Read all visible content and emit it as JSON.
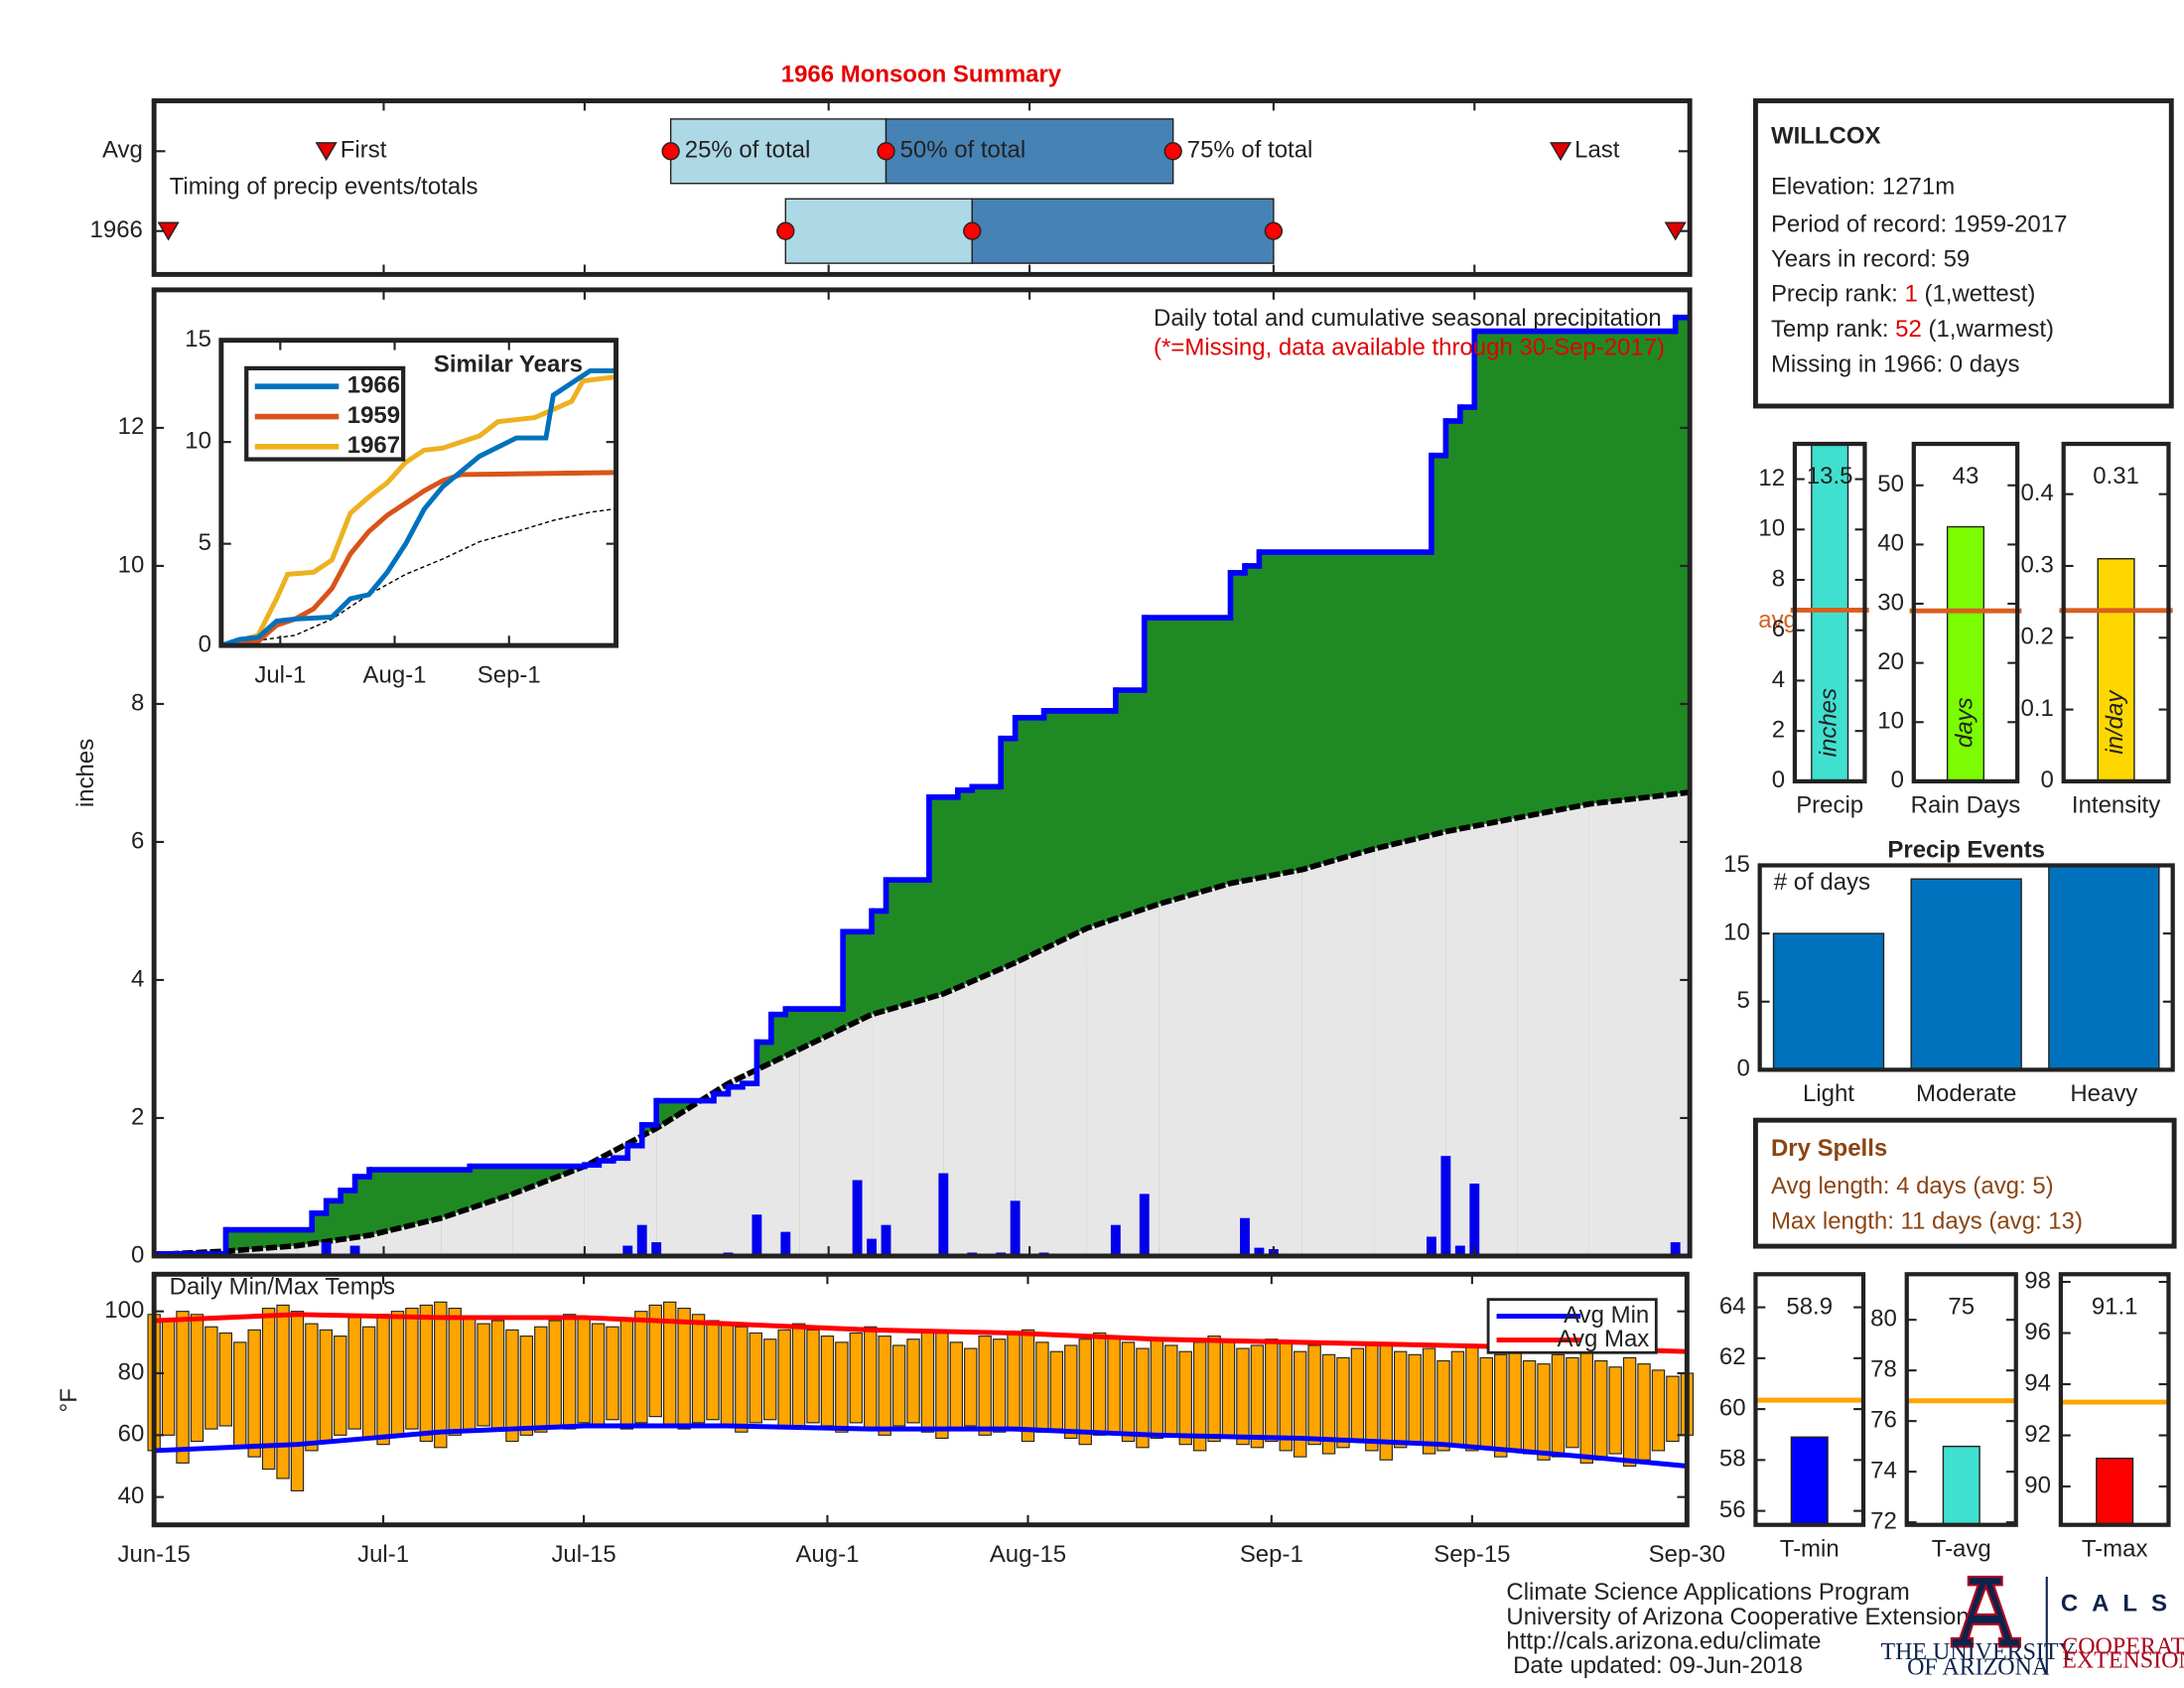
{
  "chart_data": [
    {
      "type": "timing",
      "title": "1966 Monsoon Summary",
      "note": "Timing of precip events/totals",
      "xlim": [
        0,
        107
      ],
      "xticks": [
        0,
        16,
        30,
        47,
        61,
        78,
        92,
        107
      ],
      "first_label": "First",
      "p25_label": "25% of total",
      "p50_label": "50% of total",
      "p75_label": "75% of total",
      "last_label": "Last",
      "rows": [
        {
          "label": "Avg",
          "first": 12,
          "p25": 36,
          "p50": 51,
          "p75": 71,
          "last": 98
        },
        {
          "label": "1966",
          "first": 1,
          "p25": 44,
          "p50": 57,
          "p75": 78,
          "last": 106
        }
      ]
    },
    {
      "type": "cumulative",
      "ylabel": "inches",
      "title": "Daily total and cumulative seasonal precipitation",
      "subtitle": "(*=Missing, data available through 30-Sep-2017)",
      "xlim": [
        0,
        107
      ],
      "xticks": [
        0,
        16,
        30,
        47,
        61,
        78,
        92,
        107
      ],
      "ylim": [
        0,
        14
      ],
      "yticks": [
        0,
        2,
        4,
        6,
        8,
        10,
        12
      ],
      "daily": {
        "color": "#0000ee",
        "x": [
          12,
          14,
          30,
          33,
          34,
          35,
          40,
          42,
          44,
          49,
          50,
          51,
          55,
          57,
          59,
          60,
          62,
          67,
          69,
          76,
          77,
          78,
          89,
          90,
          91,
          92,
          106
        ],
        "values": [
          0.2,
          0.15,
          0.02,
          0.15,
          0.45,
          0.2,
          0.05,
          0.6,
          0.35,
          1.1,
          0.25,
          0.45,
          1.2,
          0.05,
          0.05,
          0.8,
          0.05,
          0.45,
          0.9,
          0.55,
          0.12,
          0.1,
          0.28,
          1.45,
          0.15,
          1.05,
          0.2
        ]
      },
      "cumulative": {
        "color": "#0000ff",
        "fill": "#1f8a24",
        "x": [
          0,
          5,
          11,
          12,
          13,
          14,
          15,
          22,
          30,
          31,
          32,
          33,
          34,
          35,
          39,
          40,
          41,
          42,
          43,
          44,
          48,
          50,
          51,
          54,
          56,
          57,
          59,
          60,
          62,
          67,
          69,
          75,
          76,
          77,
          89,
          90,
          91,
          92,
          106
        ],
        "values": [
          0.03,
          0.38,
          0.62,
          0.8,
          0.95,
          1.15,
          1.25,
          1.3,
          1.32,
          1.38,
          1.42,
          1.6,
          1.9,
          2.25,
          2.35,
          2.45,
          2.5,
          3.1,
          3.5,
          3.58,
          4.7,
          5.0,
          5.45,
          6.65,
          6.75,
          6.8,
          7.5,
          7.8,
          7.9,
          8.2,
          9.25,
          9.9,
          10.0,
          10.2,
          11.6,
          12.1,
          12.3,
          13.4,
          13.6
        ]
      },
      "average": {
        "color": "#000000",
        "fill": "#e8e7e7",
        "x": [
          0,
          5,
          10,
          15,
          20,
          25,
          30,
          35,
          40,
          45,
          50,
          55,
          60,
          65,
          70,
          75,
          80,
          85,
          90,
          95,
          100,
          107
        ],
        "values": [
          0.02,
          0.07,
          0.15,
          0.3,
          0.55,
          0.9,
          1.3,
          1.85,
          2.5,
          3.0,
          3.5,
          3.8,
          4.25,
          4.75,
          5.1,
          5.4,
          5.6,
          5.9,
          6.15,
          6.35,
          6.55,
          6.72
        ]
      }
    },
    {
      "type": "line",
      "title": "Similar Years",
      "xlim": [
        0,
        107
      ],
      "xticks": [
        {
          "value": 16,
          "label": "Jul-1"
        },
        {
          "value": 47,
          "label": "Aug-1"
        },
        {
          "value": 78,
          "label": "Sep-1"
        }
      ],
      "ylim": [
        0,
        15
      ],
      "yticks": [
        0,
        5,
        10,
        15
      ],
      "series": [
        {
          "name": "1966",
          "color": "#0072bd",
          "x": [
            0,
            5,
            10,
            15,
            20,
            30,
            35,
            40,
            45,
            50,
            55,
            60,
            70,
            80,
            88,
            90,
            100,
            107
          ],
          "values": [
            0,
            0.3,
            0.4,
            1.2,
            1.3,
            1.4,
            2.3,
            2.5,
            3.6,
            5.0,
            6.7,
            7.8,
            9.3,
            10.2,
            10.2,
            12.3,
            13.5,
            13.5
          ]
        },
        {
          "name": "1959",
          "color": "#d95319",
          "x": [
            0,
            10,
            15,
            20,
            25,
            30,
            35,
            40,
            45,
            50,
            55,
            60,
            65,
            107
          ],
          "values": [
            0,
            0.2,
            1.0,
            1.3,
            1.8,
            2.8,
            4.5,
            5.6,
            6.4,
            7.0,
            7.6,
            8.1,
            8.4,
            8.5
          ]
        },
        {
          "name": "1967",
          "color": "#edb120",
          "x": [
            0,
            10,
            15,
            18,
            25,
            30,
            35,
            40,
            45,
            50,
            55,
            60,
            70,
            75,
            85,
            95,
            98,
            107
          ],
          "values": [
            0,
            0.5,
            2.3,
            3.5,
            3.6,
            4.2,
            6.5,
            7.3,
            8.0,
            9.0,
            9.6,
            9.7,
            10.3,
            11.0,
            11.2,
            12.0,
            13.0,
            13.2
          ]
        }
      ],
      "average": {
        "color": "#000000",
        "x": [
          0,
          20,
          30,
          40,
          50,
          60,
          70,
          80,
          90,
          100,
          107
        ],
        "values": [
          0,
          0.5,
          1.3,
          2.5,
          3.5,
          4.25,
          5.1,
          5.6,
          6.15,
          6.55,
          6.72
        ]
      }
    },
    {
      "type": "range_bar",
      "title": "Daily Min/Max Temps",
      "ylabel": "°F",
      "xlim": [
        0,
        107
      ],
      "xticks": [
        {
          "value": 0,
          "label": "Jun-15"
        },
        {
          "value": 16,
          "label": "Jul-1"
        },
        {
          "value": 30,
          "label": "Jul-15"
        },
        {
          "value": 47,
          "label": "Aug-1"
        },
        {
          "value": 61,
          "label": "Aug-15"
        },
        {
          "value": 78,
          "label": "Sep-1"
        },
        {
          "value": 92,
          "label": "Sep-15"
        },
        {
          "value": 107,
          "label": "Sep-30"
        }
      ],
      "ylim": [
        31,
        112
      ],
      "yticks": [
        40,
        60,
        80,
        100
      ],
      "color": "#ffa500",
      "x": [
        0,
        1,
        2,
        3,
        4,
        5,
        6,
        7,
        8,
        9,
        10,
        11,
        12,
        13,
        14,
        15,
        16,
        17,
        18,
        19,
        20,
        21,
        22,
        23,
        24,
        25,
        26,
        27,
        28,
        29,
        30,
        31,
        32,
        33,
        34,
        35,
        36,
        37,
        38,
        39,
        40,
        41,
        42,
        43,
        44,
        45,
        46,
        47,
        48,
        49,
        50,
        51,
        52,
        53,
        54,
        55,
        56,
        57,
        58,
        59,
        60,
        61,
        62,
        63,
        64,
        65,
        66,
        67,
        68,
        69,
        70,
        71,
        72,
        73,
        74,
        75,
        76,
        77,
        78,
        79,
        80,
        81,
        82,
        83,
        84,
        85,
        86,
        87,
        88,
        89,
        90,
        91,
        92,
        93,
        94,
        95,
        96,
        97,
        98,
        99,
        100,
        101,
        102,
        103,
        104,
        105,
        106,
        107
      ],
      "high": [
        99,
        97,
        100,
        99,
        95,
        93,
        90,
        94,
        101,
        102,
        100,
        96,
        94,
        92,
        98,
        95,
        99,
        100,
        101,
        102,
        103,
        101,
        98,
        96,
        97,
        94,
        92,
        95,
        97,
        99,
        98,
        96,
        95,
        97,
        100,
        102,
        103,
        101,
        99,
        97,
        96,
        95,
        93,
        91,
        94,
        96,
        94,
        92,
        90,
        93,
        95,
        92,
        89,
        91,
        94,
        93,
        90,
        88,
        92,
        91,
        93,
        94,
        90,
        87,
        89,
        91,
        93,
        92,
        90,
        88,
        91,
        89,
        87,
        90,
        92,
        90,
        88,
        89,
        91,
        90,
        87,
        89,
        86,
        85,
        88,
        90,
        89,
        87,
        86,
        88,
        84,
        87,
        89,
        85,
        86,
        88,
        84,
        83,
        86,
        85,
        87,
        84,
        82,
        85,
        83,
        81,
        79,
        80
      ],
      "low": [
        55,
        60,
        51,
        58,
        62,
        63,
        56,
        53,
        49,
        46,
        42,
        55,
        58,
        60,
        62,
        59,
        57,
        60,
        62,
        58,
        56,
        60,
        61,
        63,
        62,
        58,
        60,
        61,
        63,
        62,
        64,
        63,
        65,
        62,
        64,
        66,
        63,
        62,
        64,
        65,
        63,
        61,
        64,
        65,
        63,
        62,
        64,
        63,
        61,
        64,
        62,
        60,
        63,
        64,
        61,
        59,
        62,
        63,
        60,
        61,
        62,
        58,
        61,
        62,
        59,
        57,
        60,
        61,
        58,
        56,
        59,
        60,
        57,
        55,
        58,
        60,
        57,
        56,
        58,
        55,
        53,
        57,
        54,
        56,
        58,
        55,
        52,
        56,
        57,
        54,
        55,
        57,
        55,
        56,
        53,
        55,
        54,
        52,
        53,
        56,
        51,
        52,
        54,
        50,
        52,
        55,
        58,
        60
      ],
      "series": [
        {
          "name": "Avg Min",
          "color": "#0000ff",
          "x": [
            0,
            10,
            20,
            30,
            40,
            50,
            60,
            70,
            80,
            90,
            100,
            107
          ],
          "values": [
            55,
            57,
            61,
            63,
            63,
            62,
            62,
            60,
            59,
            57,
            53,
            50
          ]
        },
        {
          "name": "Avg Max",
          "color": "#ff0000",
          "x": [
            0,
            10,
            20,
            30,
            40,
            50,
            60,
            70,
            80,
            90,
            100,
            107
          ],
          "values": [
            97,
            99,
            98,
            98,
            96,
            94,
            93,
            91,
            90,
            89,
            88,
            87
          ]
        }
      ]
    },
    {
      "type": "bar",
      "categories": [
        "Precip"
      ],
      "values": [
        13.5
      ],
      "color": "#40e0d0",
      "avg": 6.8,
      "avg_color": "#d95f1e",
      "avg_label": "avg",
      "inner_label": "inches",
      "ylim": [
        0,
        13.4
      ],
      "yticks": [
        0,
        2,
        4,
        6,
        8,
        10,
        12
      ]
    },
    {
      "type": "bar",
      "categories": [
        "Rain Days"
      ],
      "values": [
        43
      ],
      "color": "#7cfc00",
      "avg": 28.8,
      "avg_color": "#d95f1e",
      "inner_label": "days",
      "ylim": [
        0,
        57
      ],
      "yticks": [
        0,
        10,
        20,
        30,
        40,
        50
      ]
    },
    {
      "type": "bar",
      "categories": [
        "Intensity"
      ],
      "values": [
        0.31
      ],
      "color": "#ffd700",
      "avg": 0.238,
      "avg_color": "#d95f1e",
      "inner_label": "in/day",
      "ylim": [
        0,
        0.47
      ],
      "yticks": [
        0,
        0.1,
        0.2,
        0.3,
        0.4
      ]
    },
    {
      "type": "bar",
      "title": "Precip Events",
      "note": "# of days",
      "categories": [
        "Light",
        "Moderate",
        "Heavy"
      ],
      "values": [
        10,
        14,
        15
      ],
      "color": "#0072bd",
      "ylim": [
        0,
        15
      ],
      "yticks": [
        0,
        5,
        10,
        15
      ]
    },
    {
      "type": "bar",
      "categories": [
        "T-min"
      ],
      "values": [
        58.9
      ],
      "color": "#0000ff",
      "avg": 60.35,
      "avg_color": "#ffa500",
      "ylim": [
        55.45,
        65.3
      ],
      "yticks": [
        56,
        58,
        60,
        62,
        64
      ]
    },
    {
      "type": "bar",
      "categories": [
        "T-avg"
      ],
      "values": [
        75
      ],
      "color": "#40e0d0",
      "avg": 76.8,
      "avg_color": "#ffa500",
      "ylim": [
        71.9,
        81.8
      ],
      "yticks": [
        72,
        74,
        76,
        78,
        80
      ]
    },
    {
      "type": "bar",
      "categories": [
        "T-max"
      ],
      "values": [
        91.1
      ],
      "color": "#ff0000",
      "avg": 93.3,
      "avg_color": "#ffa500",
      "ylim": [
        88.5,
        98.3
      ],
      "yticks": [
        90,
        92,
        94,
        96,
        98
      ]
    }
  ],
  "station": {
    "name": "WILLCOX",
    "elevation": "Elevation: 1271m",
    "period": "Period of record: 1959-2017",
    "years": "Years in record: 59",
    "precip_rank": {
      "prefix": "Precip rank: ",
      "value": 1,
      "suffix": " (1,wettest)"
    },
    "temp_rank": {
      "prefix": "Temp rank: ",
      "value": 52,
      "suffix": " (1,warmest)"
    },
    "missing": "Missing in 1966: 0 days"
  },
  "dry_spells": {
    "title": "Dry Spells",
    "avg": "Avg length: 4 days (avg: 5)",
    "max": "Max length: 11 days (avg: 13)"
  },
  "footer": {
    "lines": [
      "Climate Science Applications Program",
      "University of Arizona Cooperative Extension",
      "http://cals.arizona.edu/climate",
      " Date updated: 09-Jun-2018"
    ],
    "logo_ua": [
      "THE UNIVERSITY",
      "OF ARIZONA"
    ],
    "logo_cals": "CALS",
    "logo_ext": [
      "COOPERATIVE",
      "EXTENSION"
    ]
  }
}
